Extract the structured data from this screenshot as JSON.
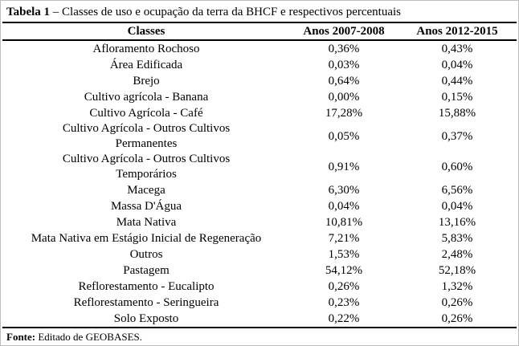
{
  "caption": {
    "bold": "Tabela 1",
    "rest": "– Classes de uso e ocupação da terra da BHCF e respectivos percentuais"
  },
  "table": {
    "headers": [
      "Classes",
      "Anos 2007-2008",
      "Anos 2012-2015"
    ],
    "rows": [
      {
        "classe": "Afloramento Rochoso",
        "anos_2007_2008": "0,36%",
        "anos_2012_2015": "0,43%"
      },
      {
        "classe": "Área Edificada",
        "anos_2007_2008": "0,03%",
        "anos_2012_2015": "0,04%"
      },
      {
        "classe": "Brejo",
        "anos_2007_2008": "0,64%",
        "anos_2012_2015": "0,44%"
      },
      {
        "classe": "Cultivo agrícola - Banana",
        "anos_2007_2008": "0,00%",
        "anos_2012_2015": "0,15%"
      },
      {
        "classe": "Cultivo Agrícola - Café",
        "anos_2007_2008": "17,28%",
        "anos_2012_2015": "15,88%"
      },
      {
        "classe": "Cultivo Agrícola - Outros Cultivos\nPermanentes",
        "anos_2007_2008": "0,05%",
        "anos_2012_2015": "0,37%"
      },
      {
        "classe": "Cultivo Agrícola - Outros Cultivos\nTemporários",
        "anos_2007_2008": "0,91%",
        "anos_2012_2015": "0,60%"
      },
      {
        "classe": "Macega",
        "anos_2007_2008": "6,30%",
        "anos_2012_2015": "6,56%"
      },
      {
        "classe": "Massa D'Água",
        "anos_2007_2008": "0,04%",
        "anos_2012_2015": "0,04%"
      },
      {
        "classe": "Mata Nativa",
        "anos_2007_2008": "10,81%",
        "anos_2012_2015": "13,16%"
      },
      {
        "classe": "Mata Nativa em Estágio Inicial de Regeneração",
        "anos_2007_2008": "7,21%",
        "anos_2012_2015": "5,83%"
      },
      {
        "classe": "Outros",
        "anos_2007_2008": "1,53%",
        "anos_2012_2015": "2,48%"
      },
      {
        "classe": "Pastagem",
        "anos_2007_2008": "54,12%",
        "anos_2012_2015": "52,18%"
      },
      {
        "classe": "Reflorestamento - Eucalipto",
        "anos_2007_2008": "0,26%",
        "anos_2012_2015": "1,32%"
      },
      {
        "classe": "Reflorestamento - Seringueira",
        "anos_2007_2008": "0,23%",
        "anos_2012_2015": "0,26%"
      },
      {
        "classe": "Solo Exposto",
        "anos_2007_2008": "0,22%",
        "anos_2012_2015": "0,26%"
      }
    ]
  },
  "footer": {
    "bold": "Fonte:",
    "rest": "Editado de GEOBASES."
  }
}
